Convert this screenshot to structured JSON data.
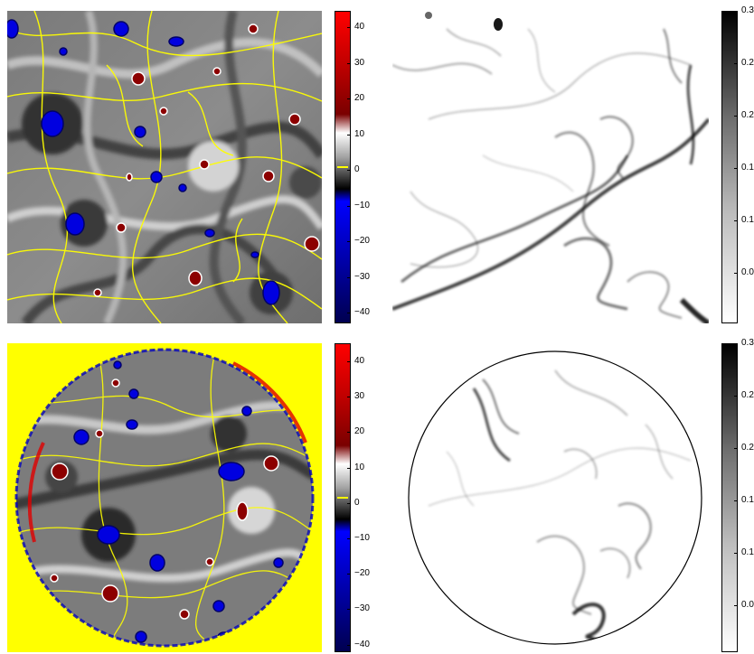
{
  "colors": {
    "vort_pos": "#e00000",
    "vort_neg": "#0000e0",
    "vort_mask": "#ffff00",
    "background": "#ffffff",
    "strain_dark": "#000000"
  },
  "panels": [
    {
      "id": "top-left",
      "kind": "vorticity",
      "domain": "square",
      "colorbar": {
        "ticks": [
          "40",
          "30",
          "20",
          "10",
          "0",
          "−10",
          "−20",
          "−30",
          "−40"
        ],
        "range": [
          -45,
          45
        ]
      }
    },
    {
      "id": "top-right",
      "kind": "strain",
      "domain": "square",
      "colorbar": {
        "ticks": [
          "0.3",
          "0.2",
          "0.2",
          "0.1",
          "0.1",
          "0.0"
        ],
        "range": [
          0,
          0.3
        ]
      }
    },
    {
      "id": "bottom-left",
      "kind": "vorticity",
      "domain": "disk",
      "colorbar": {
        "ticks": [
          "40",
          "30",
          "20",
          "10",
          "0",
          "−10",
          "−20",
          "−30",
          "−40"
        ],
        "range": [
          -45,
          45
        ]
      }
    },
    {
      "id": "bottom-right",
      "kind": "strain",
      "domain": "disk",
      "colorbar": {
        "ticks": [
          "0.3",
          "0.2",
          "0.2",
          "0.1",
          "0.1",
          "0.0"
        ],
        "range": [
          0,
          0.3
        ]
      }
    }
  ]
}
